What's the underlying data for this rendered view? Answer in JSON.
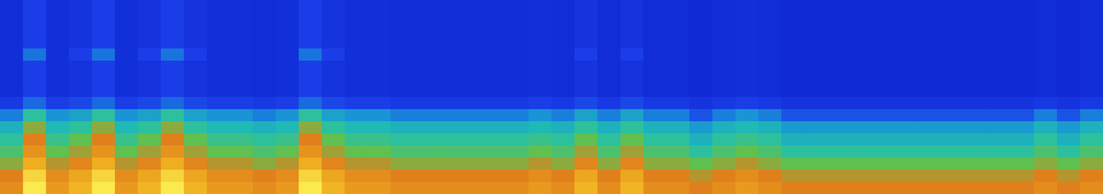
{
  "chart_data": {
    "type": "heatmap",
    "tick_labels": false,
    "zlim": [
      0,
      100
    ],
    "cells": [
      [
        13,
        20,
        14,
        16,
        20,
        14,
        16,
        20,
        16,
        14,
        14,
        13,
        14,
        20,
        16,
        14,
        14,
        13,
        13,
        13,
        13,
        13,
        13,
        14,
        13,
        16,
        13,
        16,
        13,
        13,
        12,
        13,
        14,
        13,
        12,
        12,
        12,
        12,
        12,
        12,
        12,
        12,
        12,
        12,
        12,
        13,
        12,
        13
      ],
      [
        13,
        20,
        14,
        16,
        20,
        14,
        16,
        20,
        16,
        14,
        14,
        13,
        14,
        20,
        16,
        14,
        14,
        13,
        13,
        13,
        13,
        13,
        13,
        14,
        13,
        16,
        13,
        16,
        13,
        13,
        12,
        13,
        14,
        13,
        12,
        12,
        12,
        12,
        12,
        12,
        12,
        12,
        12,
        12,
        12,
        13,
        12,
        13
      ],
      [
        13,
        20,
        14,
        16,
        20,
        14,
        16,
        20,
        16,
        14,
        14,
        13,
        14,
        20,
        16,
        14,
        14,
        13,
        13,
        13,
        13,
        13,
        13,
        14,
        13,
        16,
        13,
        16,
        13,
        13,
        12,
        13,
        14,
        13,
        12,
        12,
        12,
        12,
        12,
        12,
        12,
        12,
        12,
        12,
        12,
        13,
        12,
        13
      ],
      [
        13,
        20,
        14,
        16,
        20,
        14,
        16,
        20,
        16,
        14,
        14,
        13,
        14,
        20,
        16,
        14,
        14,
        13,
        13,
        13,
        13,
        13,
        13,
        14,
        13,
        16,
        13,
        16,
        13,
        13,
        12,
        13,
        14,
        13,
        12,
        12,
        12,
        12,
        12,
        12,
        12,
        12,
        12,
        12,
        12,
        13,
        12,
        13
      ],
      [
        13,
        30,
        14,
        20,
        30,
        14,
        20,
        30,
        20,
        14,
        14,
        13,
        14,
        30,
        20,
        14,
        14,
        13,
        13,
        13,
        13,
        13,
        13,
        14,
        13,
        20,
        13,
        20,
        13,
        13,
        12,
        13,
        14,
        13,
        12,
        12,
        12,
        12,
        12,
        12,
        12,
        12,
        12,
        12,
        12,
        13,
        12,
        13
      ],
      [
        13,
        20,
        14,
        16,
        20,
        14,
        16,
        20,
        16,
        14,
        14,
        13,
        14,
        20,
        16,
        14,
        14,
        13,
        13,
        13,
        13,
        13,
        13,
        14,
        13,
        16,
        13,
        16,
        13,
        13,
        12,
        13,
        14,
        13,
        12,
        12,
        12,
        12,
        12,
        12,
        12,
        12,
        12,
        12,
        12,
        13,
        12,
        13
      ],
      [
        13,
        20,
        14,
        16,
        20,
        14,
        16,
        20,
        16,
        14,
        14,
        13,
        14,
        20,
        16,
        14,
        14,
        13,
        13,
        13,
        13,
        13,
        13,
        14,
        13,
        16,
        13,
        16,
        13,
        13,
        12,
        13,
        14,
        13,
        12,
        12,
        12,
        12,
        12,
        12,
        12,
        12,
        12,
        12,
        12,
        13,
        12,
        13
      ],
      [
        13,
        20,
        14,
        16,
        20,
        14,
        16,
        20,
        16,
        14,
        14,
        13,
        14,
        20,
        16,
        14,
        14,
        13,
        13,
        13,
        13,
        13,
        13,
        14,
        13,
        16,
        13,
        16,
        13,
        13,
        12,
        13,
        14,
        13,
        12,
        12,
        12,
        12,
        12,
        12,
        12,
        12,
        12,
        12,
        12,
        13,
        12,
        13
      ],
      [
        18,
        28,
        20,
        22,
        28,
        20,
        22,
        28,
        22,
        20,
        20,
        18,
        20,
        28,
        22,
        20,
        20,
        18,
        18,
        18,
        18,
        18,
        18,
        20,
        18,
        22,
        18,
        22,
        18,
        18,
        16,
        18,
        20,
        18,
        16,
        16,
        16,
        16,
        16,
        16,
        16,
        16,
        16,
        16,
        16,
        18,
        16,
        18
      ],
      [
        32,
        50,
        36,
        40,
        50,
        36,
        40,
        50,
        40,
        36,
        36,
        32,
        36,
        50,
        40,
        36,
        36,
        32,
        32,
        32,
        32,
        32,
        32,
        36,
        32,
        40,
        32,
        40,
        32,
        32,
        24,
        32,
        36,
        32,
        24,
        24,
        24,
        24,
        24,
        24,
        24,
        24,
        24,
        24,
        24,
        32,
        24,
        32
      ],
      [
        44,
        62,
        46,
        50,
        62,
        46,
        50,
        62,
        50,
        46,
        46,
        44,
        46,
        62,
        50,
        46,
        46,
        44,
        44,
        44,
        44,
        44,
        44,
        46,
        44,
        50,
        44,
        50,
        44,
        44,
        38,
        44,
        46,
        44,
        38,
        38,
        38,
        38,
        38,
        38,
        38,
        38,
        38,
        38,
        38,
        44,
        38,
        44
      ],
      [
        50,
        70,
        52,
        58,
        70,
        52,
        58,
        70,
        58,
        52,
        52,
        50,
        52,
        70,
        58,
        52,
        52,
        50,
        50,
        50,
        50,
        50,
        50,
        52,
        50,
        58,
        50,
        58,
        50,
        50,
        44,
        50,
        52,
        50,
        44,
        44,
        44,
        44,
        44,
        44,
        44,
        44,
        44,
        44,
        44,
        50,
        44,
        50
      ],
      [
        55,
        76,
        58,
        64,
        76,
        58,
        64,
        76,
        64,
        58,
        58,
        55,
        58,
        76,
        64,
        58,
        58,
        55,
        55,
        55,
        55,
        55,
        55,
        58,
        55,
        64,
        55,
        64,
        55,
        55,
        50,
        55,
        58,
        55,
        50,
        50,
        50,
        50,
        50,
        50,
        50,
        50,
        50,
        50,
        50,
        55,
        50,
        55
      ],
      [
        62,
        84,
        66,
        72,
        84,
        66,
        72,
        84,
        72,
        66,
        66,
        62,
        66,
        84,
        72,
        66,
        66,
        62,
        62,
        62,
        62,
        62,
        62,
        66,
        62,
        72,
        62,
        72,
        62,
        62,
        58,
        62,
        66,
        62,
        58,
        58,
        58,
        58,
        58,
        58,
        58,
        58,
        58,
        58,
        58,
        62,
        58,
        62
      ],
      [
        70,
        92,
        74,
        82,
        92,
        74,
        82,
        92,
        82,
        74,
        74,
        70,
        74,
        92,
        82,
        74,
        74,
        70,
        70,
        70,
        70,
        70,
        70,
        74,
        70,
        82,
        70,
        82,
        70,
        70,
        66,
        70,
        74,
        70,
        66,
        66,
        66,
        66,
        66,
        66,
        66,
        66,
        66,
        66,
        66,
        70,
        66,
        70
      ],
      [
        74,
        96,
        78,
        86,
        96,
        78,
        86,
        96,
        86,
        78,
        78,
        74,
        78,
        96,
        86,
        78,
        78,
        74,
        74,
        74,
        74,
        74,
        74,
        78,
        74,
        86,
        74,
        86,
        74,
        74,
        70,
        74,
        78,
        74,
        70,
        70,
        70,
        70,
        70,
        70,
        70,
        70,
        70,
        70,
        70,
        74,
        70,
        74
      ]
    ]
  }
}
